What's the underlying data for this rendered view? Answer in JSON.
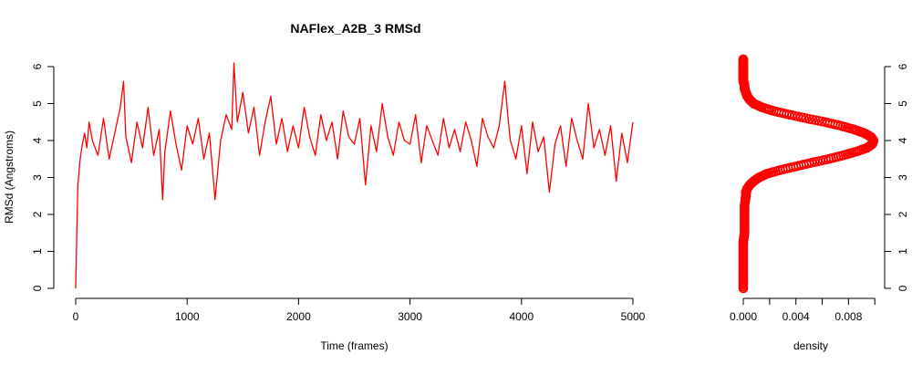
{
  "chart_data": [
    {
      "type": "line",
      "title": "NAFlex_A2B_3 RMSd",
      "xlabel": "Time (frames)",
      "ylabel": "RMSd (Angstroms)",
      "xlim": [
        0,
        5000
      ],
      "ylim": [
        0,
        6
      ],
      "x_ticks": [
        0,
        1000,
        2000,
        3000,
        4000,
        5000
      ],
      "x_tick_labels": [
        "0",
        "1000",
        "2000",
        "3000",
        "4000",
        "5000"
      ],
      "y_ticks": [
        0,
        1,
        2,
        3,
        4,
        5,
        6
      ],
      "y_tick_labels": [
        "0",
        "1",
        "2",
        "3",
        "4",
        "5",
        "6"
      ],
      "grid": false,
      "color": "#ff0000",
      "series": [
        {
          "x": [
            0,
            10,
            20,
            40,
            60,
            80,
            100,
            120,
            150,
            200,
            250,
            300,
            350,
            400,
            430,
            450,
            500,
            550,
            600,
            650,
            700,
            750,
            780,
            800,
            850,
            900,
            950,
            1000,
            1050,
            1100,
            1150,
            1200,
            1250,
            1300,
            1350,
            1400,
            1420,
            1450,
            1500,
            1550,
            1600,
            1650,
            1700,
            1750,
            1800,
            1850,
            1900,
            1950,
            2000,
            2050,
            2100,
            2150,
            2200,
            2250,
            2300,
            2350,
            2400,
            2450,
            2500,
            2550,
            2600,
            2650,
            2700,
            2750,
            2800,
            2850,
            2900,
            2950,
            3000,
            3050,
            3100,
            3150,
            3200,
            3250,
            3300,
            3350,
            3400,
            3450,
            3500,
            3550,
            3600,
            3650,
            3700,
            3750,
            3800,
            3850,
            3880,
            3900,
            3950,
            4000,
            4050,
            4100,
            4150,
            4200,
            4250,
            4300,
            4350,
            4400,
            4450,
            4500,
            4550,
            4600,
            4650,
            4700,
            4750,
            4800,
            4850,
            4900,
            4950,
            5000
          ],
          "y": [
            0.0,
            1.5,
            2.8,
            3.5,
            3.9,
            4.2,
            3.8,
            4.5,
            4.0,
            3.6,
            4.6,
            3.5,
            4.2,
            4.9,
            5.6,
            4.1,
            3.4,
            4.5,
            3.8,
            4.9,
            3.6,
            4.3,
            2.4,
            3.7,
            4.8,
            3.9,
            3.2,
            4.4,
            3.9,
            4.6,
            3.5,
            4.2,
            2.4,
            4.0,
            4.7,
            4.3,
            6.1,
            4.5,
            5.3,
            4.2,
            4.9,
            3.6,
            4.5,
            5.2,
            3.9,
            4.6,
            3.7,
            4.4,
            3.8,
            4.9,
            4.1,
            3.6,
            4.7,
            4.0,
            4.5,
            3.5,
            4.8,
            4.1,
            3.9,
            4.6,
            2.8,
            4.4,
            3.7,
            5.0,
            4.1,
            3.6,
            4.5,
            4.0,
            3.9,
            4.7,
            3.4,
            4.4,
            4.0,
            3.6,
            4.6,
            3.8,
            4.3,
            3.7,
            4.5,
            4.0,
            3.3,
            4.6,
            4.1,
            3.8,
            4.4,
            5.6,
            4.6,
            4.0,
            3.5,
            4.4,
            3.1,
            4.5,
            3.7,
            4.1,
            2.6,
            3.9,
            4.4,
            3.3,
            4.6,
            4.0,
            3.5,
            5.0,
            3.8,
            4.3,
            3.6,
            4.4,
            2.9,
            4.2,
            3.4,
            4.5
          ]
        }
      ]
    },
    {
      "type": "area",
      "title": "",
      "xlabel": "density",
      "ylabel": "",
      "xlim": [
        0,
        0.0104
      ],
      "ylim": [
        0,
        6
      ],
      "x_ticks": [
        0,
        0.002,
        0.004,
        0.006,
        0.008,
        0.01
      ],
      "x_tick_labels": [
        "0.000",
        "",
        "0.004",
        "",
        "0.008",
        ""
      ],
      "y_ticks": [
        0,
        1,
        2,
        3,
        4,
        5,
        6
      ],
      "y_tick_labels": [
        "0",
        "1",
        "2",
        "3",
        "4",
        "5",
        "6"
      ],
      "y_axis_side": "right",
      "marker": "open-circle",
      "color": "#ff0000",
      "series": [
        {
          "y": [
            0.0,
            0.25,
            0.5,
            0.75,
            1.0,
            1.25,
            1.5,
            1.75,
            2.0,
            2.25,
            2.5,
            2.6,
            2.7,
            2.8,
            2.9,
            3.0,
            3.1,
            3.2,
            3.3,
            3.4,
            3.5,
            3.6,
            3.7,
            3.8,
            3.9,
            4.0,
            4.1,
            4.2,
            4.3,
            4.4,
            4.5,
            4.6,
            4.7,
            4.8,
            4.9,
            5.0,
            5.1,
            5.2,
            5.3,
            5.4,
            5.5,
            5.6,
            5.7,
            5.8,
            5.9,
            6.0,
            6.1,
            6.2
          ],
          "x": [
            0.0,
            0.0,
            0.0,
            0.0,
            0.0,
            0.0,
            0.0001,
            0.0001,
            0.0001,
            0.0001,
            0.0002,
            0.0002,
            0.0003,
            0.0005,
            0.0008,
            0.0012,
            0.0018,
            0.0028,
            0.004,
            0.0052,
            0.0065,
            0.0076,
            0.0086,
            0.0094,
            0.0098,
            0.0099,
            0.0097,
            0.0092,
            0.0084,
            0.0074,
            0.0062,
            0.0048,
            0.0035,
            0.0023,
            0.0014,
            0.0008,
            0.0005,
            0.0003,
            0.0002,
            0.0001,
            0.0001,
            0.0,
            0.0,
            0.0,
            0.0,
            0.0,
            0.0,
            0.0
          ]
        }
      ]
    }
  ]
}
